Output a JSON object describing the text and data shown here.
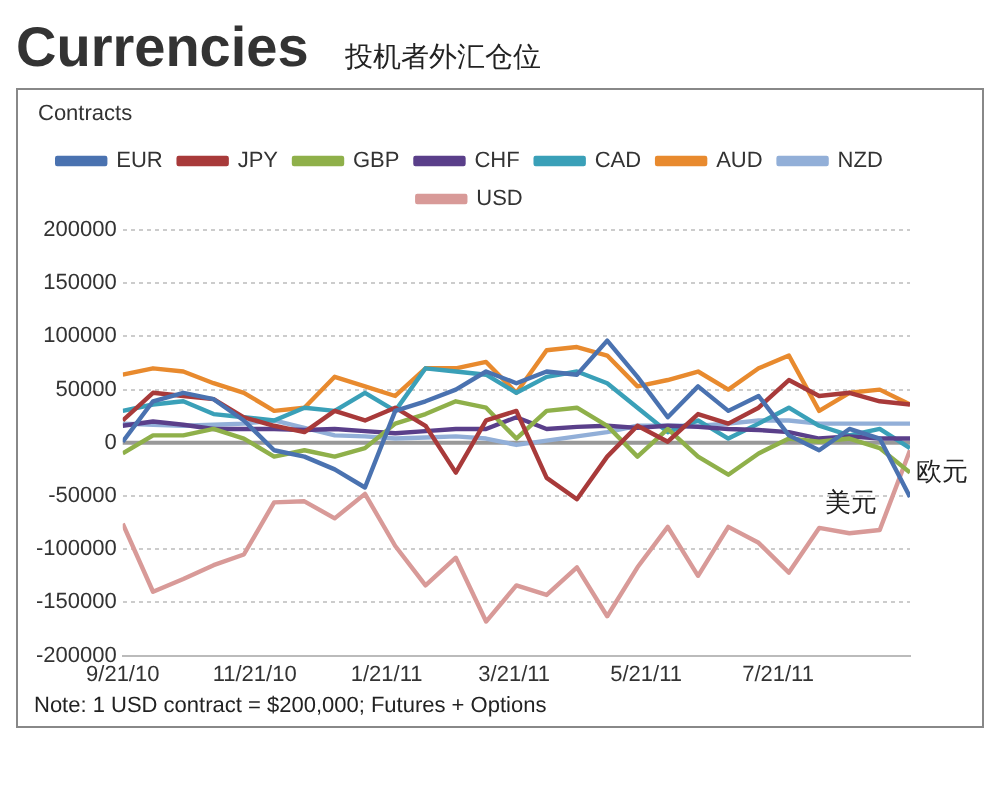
{
  "chart_data": {
    "type": "line",
    "title": "Currencies",
    "subtitle": "投机者外汇仓位",
    "ylabel": "Contracts",
    "x": [
      "2010-09-21",
      "2010-10-05",
      "2010-10-19",
      "2010-11-02",
      "2010-11-16",
      "2010-11-30",
      "2010-12-14",
      "2010-12-28",
      "2011-01-11",
      "2011-01-25",
      "2011-02-08",
      "2011-02-22",
      "2011-03-08",
      "2011-03-22",
      "2011-04-05",
      "2011-04-19",
      "2011-05-03",
      "2011-05-17",
      "2011-05-31",
      "2011-06-14",
      "2011-06-28",
      "2011-07-12",
      "2011-07-26",
      "2011-08-09",
      "2011-08-23",
      "2011-09-06",
      "2011-09-20"
    ],
    "series": [
      {
        "name": "EUR",
        "color": "#4a72b0",
        "values": [
          1000,
          39000,
          47000,
          41000,
          21000,
          -7000,
          -13000,
          -25000,
          -42000,
          30000,
          39000,
          50000,
          67000,
          56000,
          67000,
          64000,
          96000,
          62000,
          24000,
          53000,
          30000,
          44000,
          7000,
          -7000,
          13000,
          4000,
          -51000
        ]
      },
      {
        "name": "JPY",
        "color": "#a83a3a",
        "values": [
          21000,
          47000,
          44000,
          41000,
          24000,
          16000,
          10000,
          30000,
          21000,
          33000,
          16000,
          -28000,
          21000,
          30000,
          -33000,
          -53000,
          -13000,
          16000,
          1000,
          27000,
          18000,
          33000,
          59000,
          44000,
          47000,
          39000,
          36000
        ]
      },
      {
        "name": "GBP",
        "color": "#8fb04a",
        "values": [
          -10000,
          7000,
          7000,
          13000,
          4000,
          -13000,
          -7000,
          -13000,
          -5000,
          18000,
          27000,
          39000,
          33000,
          4000,
          30000,
          33000,
          16000,
          -13000,
          13000,
          -13000,
          -30000,
          -10000,
          4000,
          1000,
          4000,
          -5000,
          -28000
        ]
      },
      {
        "name": "CHF",
        "color": "#5a3f8a",
        "values": [
          16000,
          20000,
          17000,
          13000,
          13000,
          13000,
          12000,
          13000,
          11000,
          9000,
          11000,
          13000,
          13000,
          24000,
          13000,
          15000,
          16000,
          14000,
          16000,
          15000,
          13000,
          12000,
          10000,
          4000,
          6000,
          4000,
          4000
        ]
      },
      {
        "name": "CAD",
        "color": "#3aa0b8",
        "values": [
          30000,
          36000,
          39000,
          27000,
          24000,
          21000,
          33000,
          30000,
          47000,
          30000,
          70000,
          67000,
          64000,
          47000,
          62000,
          67000,
          56000,
          33000,
          10000,
          21000,
          4000,
          18000,
          33000,
          16000,
          7000,
          13000,
          -5000
        ]
      },
      {
        "name": "AUD",
        "color": "#e88a2e",
        "values": [
          64000,
          70000,
          67000,
          56000,
          47000,
          30000,
          33000,
          62000,
          53000,
          44000,
          70000,
          70000,
          76000,
          47000,
          87000,
          90000,
          82000,
          53000,
          59000,
          67000,
          50000,
          70000,
          82000,
          30000,
          47000,
          50000,
          36000
        ]
      },
      {
        "name": "NZD",
        "color": "#92afd8",
        "values": [
          18000,
          17000,
          16000,
          17000,
          18000,
          21000,
          14000,
          7000,
          6000,
          4000,
          5000,
          6000,
          4000,
          -2000,
          2000,
          6000,
          10000,
          16000,
          16000,
          16000,
          18000,
          21000,
          21000,
          18000,
          18000,
          18000,
          18000
        ]
      },
      {
        "name": "USD",
        "color": "#d89a98",
        "values": [
          -76000,
          -140000,
          -128000,
          -115000,
          -105000,
          -56000,
          -55000,
          -71000,
          -48000,
          -97000,
          -134000,
          -108000,
          -168000,
          -134000,
          -143000,
          -117000,
          -163000,
          -117000,
          -79000,
          -125000,
          -79000,
          -94000,
          -122000,
          -80000,
          -85000,
          -82000,
          -7000
        ]
      }
    ],
    "xlim": [
      "2010-09-21",
      "2011-09-20"
    ],
    "xticks": [
      {
        "value": "2010-09-21",
        "label": "9/21/10"
      },
      {
        "value": "2010-11-21",
        "label": "11/21/10"
      },
      {
        "value": "2011-01-21",
        "label": "1/21/11"
      },
      {
        "value": "2011-03-21",
        "label": "3/21/11"
      },
      {
        "value": "2011-05-21",
        "label": "5/21/11"
      },
      {
        "value": "2011-07-21",
        "label": "7/21/11"
      }
    ],
    "ylim": [
      -200000,
      200000
    ],
    "yticks": [
      -200000,
      -150000,
      -100000,
      -50000,
      0,
      50000,
      100000,
      150000,
      200000
    ],
    "grid": "y",
    "legend": "top",
    "marker": "none",
    "line_style": "solid",
    "ref_lines": [
      {
        "axis": "y",
        "value": 0,
        "color": "#999999"
      }
    ],
    "annotations": [
      {
        "text": "美元",
        "x": "2011-08-09",
        "y": -80000
      },
      {
        "text": "欧元",
        "x": "2011-09-20",
        "y": -51000
      },
      "Note: 1 USD contract = $200,000; Futures + Options"
    ]
  }
}
